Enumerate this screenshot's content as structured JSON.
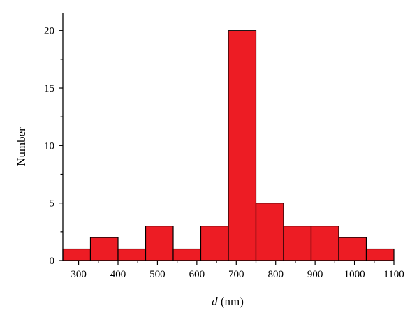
{
  "chart_data": {
    "type": "bar",
    "title": "",
    "xlabel_var": "d",
    "xlabel_unit": " (nm)",
    "ylabel": "Number",
    "xlim": [
      260,
      1100
    ],
    "ylim": [
      0,
      21.5
    ],
    "x_ticks": [
      300,
      400,
      500,
      600,
      700,
      800,
      900,
      1000,
      1100
    ],
    "y_ticks": [
      0,
      5,
      10,
      15,
      20
    ],
    "x_minor_ticks": [
      350,
      450,
      550,
      650,
      750,
      850,
      950,
      1050
    ],
    "y_minor_ticks": [
      2.5,
      7.5,
      12.5,
      17.5
    ],
    "bins": [
      {
        "start": 260,
        "end": 330,
        "value": 1
      },
      {
        "start": 330,
        "end": 400,
        "value": 2
      },
      {
        "start": 400,
        "end": 470,
        "value": 1
      },
      {
        "start": 470,
        "end": 540,
        "value": 3
      },
      {
        "start": 540,
        "end": 610,
        "value": 1
      },
      {
        "start": 610,
        "end": 680,
        "value": 3
      },
      {
        "start": 680,
        "end": 750,
        "value": 20
      },
      {
        "start": 750,
        "end": 820,
        "value": 5
      },
      {
        "start": 820,
        "end": 890,
        "value": 3
      },
      {
        "start": 890,
        "end": 960,
        "value": 3
      },
      {
        "start": 960,
        "end": 1030,
        "value": 2
      },
      {
        "start": 1030,
        "end": 1100,
        "value": 1
      }
    ],
    "bar_color": "#ed1c24",
    "grid": false,
    "legend": "none"
  }
}
